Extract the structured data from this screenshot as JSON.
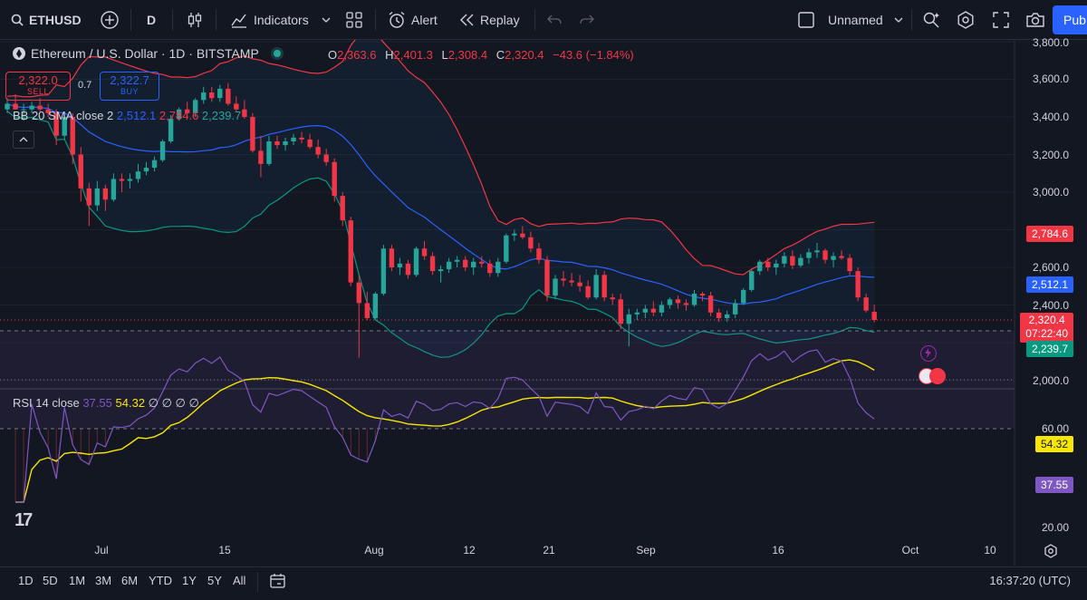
{
  "toolbar": {
    "symbol": "ETHUSD",
    "interval": "D",
    "indicators_label": "Indicators",
    "alert_label": "Alert",
    "replay_label": "Replay",
    "layout_name": "Unnamed",
    "publish_label": "Pub"
  },
  "legend": {
    "title": "Ethereum / U.S. Dollar · 1D · BITSTAMP",
    "o_label": "O",
    "o": "2,363.6",
    "h_label": "H",
    "h": "2,401.3",
    "l_label": "L",
    "l": "2,308.4",
    "c_label": "C",
    "c": "2,320.4",
    "change": "−43.6 (−1.84%)",
    "sell_price": "2,322.0",
    "sell_label": "SELL",
    "spread": "0.7",
    "buy_price": "2,322.7",
    "buy_label": "BUY",
    "bb_name": "BB 20 SMA close 2",
    "bb_basis": "2,512.1",
    "bb_upper": "2,784.6",
    "bb_lower": "2,239.7",
    "rsi_name": "RSI 14 close",
    "rsi_value": "37.55",
    "rsi_ma": "54.32",
    "rsi_extra": "∅ ∅ ∅ ∅"
  },
  "price_axis": {
    "ticks": [
      "3,800.0",
      "3,600.0",
      "3,400.0",
      "3,200.0",
      "3,000.0",
      "2,600.0",
      "2,400.0",
      "2,000.0"
    ],
    "tags": {
      "upper": "2,784.6",
      "basis": "2,512.1",
      "last": "2,320.4",
      "countdown": "07:22:40",
      "lower": "2,239.7"
    }
  },
  "rsi_axis": {
    "ticks": [
      "60.00",
      "20.00"
    ],
    "tags": {
      "ma": "54.32",
      "rsi": "37.55"
    }
  },
  "time_axis": [
    "Jul",
    "15",
    "Aug",
    "12",
    "21",
    "Sep",
    "16",
    "Oct",
    "10"
  ],
  "bottom": {
    "ranges": [
      "1D",
      "5D",
      "1M",
      "3M",
      "6M",
      "YTD",
      "1Y",
      "5Y",
      "All"
    ],
    "clock": "16:37:20 (UTC)"
  },
  "colors": {
    "up": "#26a69a",
    "down": "#f23645",
    "bb_basis": "#2962ff",
    "bb_upper": "#f23645",
    "bb_lower": "#089981",
    "rsi": "#7e57c2",
    "rsi_ma": "#f7e600"
  },
  "chart_data": {
    "type": "candlestick",
    "series_bb": [
      "basis",
      "upper",
      "lower"
    ],
    "ohlc_daily_approx": [
      [
        3440,
        3500,
        3420,
        3470
      ],
      [
        3470,
        3520,
        3440,
        3440
      ],
      [
        3440,
        3470,
        3380,
        3440
      ],
      [
        3440,
        3480,
        3420,
        3460
      ],
      [
        3460,
        3500,
        3430,
        3440
      ],
      [
        3440,
        3470,
        3400,
        3420
      ],
      [
        3420,
        3440,
        3250,
        3300
      ],
      [
        3300,
        3420,
        3280,
        3400
      ],
      [
        3400,
        3420,
        3150,
        3200
      ],
      [
        3200,
        3240,
        2950,
        3020
      ],
      [
        3020,
        3050,
        2820,
        2930
      ],
      [
        2930,
        3060,
        2900,
        3020
      ],
      [
        3020,
        3040,
        2900,
        2960
      ],
      [
        2960,
        3100,
        2950,
        3070
      ],
      [
        3070,
        3100,
        3000,
        3060
      ],
      [
        3060,
        3100,
        3020,
        3070
      ],
      [
        3070,
        3150,
        3050,
        3110
      ],
      [
        3110,
        3160,
        3090,
        3130
      ],
      [
        3130,
        3190,
        3110,
        3170
      ],
      [
        3170,
        3280,
        3160,
        3270
      ],
      [
        3270,
        3410,
        3260,
        3390
      ],
      [
        3390,
        3450,
        3380,
        3440
      ],
      [
        3440,
        3480,
        3400,
        3420
      ],
      [
        3420,
        3500,
        3400,
        3490
      ],
      [
        3490,
        3560,
        3470,
        3530
      ],
      [
        3530,
        3560,
        3480,
        3500
      ],
      [
        3500,
        3570,
        3480,
        3550
      ],
      [
        3550,
        3580,
        3460,
        3470
      ],
      [
        3470,
        3510,
        3430,
        3440
      ],
      [
        3440,
        3490,
        3390,
        3400
      ],
      [
        3400,
        3420,
        3210,
        3220
      ],
      [
        3220,
        3300,
        3080,
        3150
      ],
      [
        3150,
        3300,
        3140,
        3270
      ],
      [
        3270,
        3300,
        3230,
        3250
      ],
      [
        3250,
        3290,
        3220,
        3270
      ],
      [
        3270,
        3310,
        3250,
        3290
      ],
      [
        3290,
        3320,
        3260,
        3280
      ],
      [
        3280,
        3310,
        3230,
        3240
      ],
      [
        3240,
        3280,
        3180,
        3200
      ],
      [
        3200,
        3230,
        3140,
        3160
      ],
      [
        3160,
        3180,
        2950,
        2980
      ],
      [
        2980,
        3000,
        2820,
        2850
      ],
      [
        2850,
        2870,
        2500,
        2520
      ],
      [
        2520,
        2560,
        2120,
        2410
      ],
      [
        2410,
        2470,
        2320,
        2330
      ],
      [
        2330,
        2470,
        2320,
        2460
      ],
      [
        2460,
        2720,
        2450,
        2700
      ],
      [
        2700,
        2720,
        2580,
        2600
      ],
      [
        2600,
        2650,
        2560,
        2620
      ],
      [
        2620,
        2640,
        2540,
        2560
      ],
      [
        2560,
        2710,
        2550,
        2700
      ],
      [
        2700,
        2740,
        2640,
        2660
      ],
      [
        2660,
        2680,
        2560,
        2580
      ],
      [
        2580,
        2610,
        2520,
        2590
      ],
      [
        2590,
        2650,
        2570,
        2630
      ],
      [
        2630,
        2660,
        2600,
        2640
      ],
      [
        2640,
        2660,
        2580,
        2600
      ],
      [
        2600,
        2650,
        2560,
        2630
      ],
      [
        2630,
        2660,
        2600,
        2620
      ],
      [
        2620,
        2640,
        2550,
        2570
      ],
      [
        2570,
        2650,
        2550,
        2630
      ],
      [
        2630,
        2780,
        2620,
        2770
      ],
      [
        2770,
        2800,
        2740,
        2780
      ],
      [
        2780,
        2820,
        2750,
        2760
      ],
      [
        2760,
        2790,
        2680,
        2700
      ],
      [
        2700,
        2730,
        2620,
        2640
      ],
      [
        2640,
        2660,
        2420,
        2450
      ],
      [
        2450,
        2560,
        2430,
        2540
      ],
      [
        2540,
        2580,
        2500,
        2530
      ],
      [
        2530,
        2570,
        2500,
        2520
      ],
      [
        2520,
        2560,
        2470,
        2500
      ],
      [
        2500,
        2530,
        2430,
        2440
      ],
      [
        2440,
        2590,
        2430,
        2560
      ],
      [
        2560,
        2580,
        2420,
        2440
      ],
      [
        2440,
        2460,
        2400,
        2430
      ],
      [
        2430,
        2460,
        2270,
        2300
      ],
      [
        2300,
        2380,
        2180,
        2350
      ],
      [
        2350,
        2380,
        2320,
        2360
      ],
      [
        2360,
        2400,
        2330,
        2380
      ],
      [
        2380,
        2420,
        2340,
        2360
      ],
      [
        2360,
        2420,
        2340,
        2400
      ],
      [
        2400,
        2440,
        2380,
        2430
      ],
      [
        2430,
        2450,
        2380,
        2410
      ],
      [
        2410,
        2430,
        2370,
        2400
      ],
      [
        2400,
        2480,
        2390,
        2460
      ],
      [
        2460,
        2470,
        2420,
        2450
      ],
      [
        2450,
        2470,
        2340,
        2360
      ],
      [
        2360,
        2380,
        2310,
        2330
      ],
      [
        2330,
        2370,
        2310,
        2350
      ],
      [
        2350,
        2430,
        2330,
        2410
      ],
      [
        2410,
        2490,
        2400,
        2480
      ],
      [
        2480,
        2590,
        2470,
        2580
      ],
      [
        2580,
        2640,
        2560,
        2630
      ],
      [
        2630,
        2650,
        2580,
        2600
      ],
      [
        2600,
        2640,
        2560,
        2620
      ],
      [
        2620,
        2680,
        2600,
        2660
      ],
      [
        2660,
        2690,
        2590,
        2610
      ],
      [
        2610,
        2670,
        2600,
        2650
      ],
      [
        2650,
        2700,
        2620,
        2680
      ],
      [
        2680,
        2730,
        2650,
        2690
      ],
      [
        2690,
        2700,
        2620,
        2640
      ],
      [
        2640,
        2680,
        2600,
        2660
      ],
      [
        2660,
        2690,
        2640,
        2650
      ],
      [
        2650,
        2670,
        2560,
        2580
      ],
      [
        2580,
        2600,
        2420,
        2440
      ],
      [
        2440,
        2460,
        2360,
        2370
      ],
      [
        2363.6,
        2401.3,
        2308.4,
        2320.4
      ]
    ]
  }
}
